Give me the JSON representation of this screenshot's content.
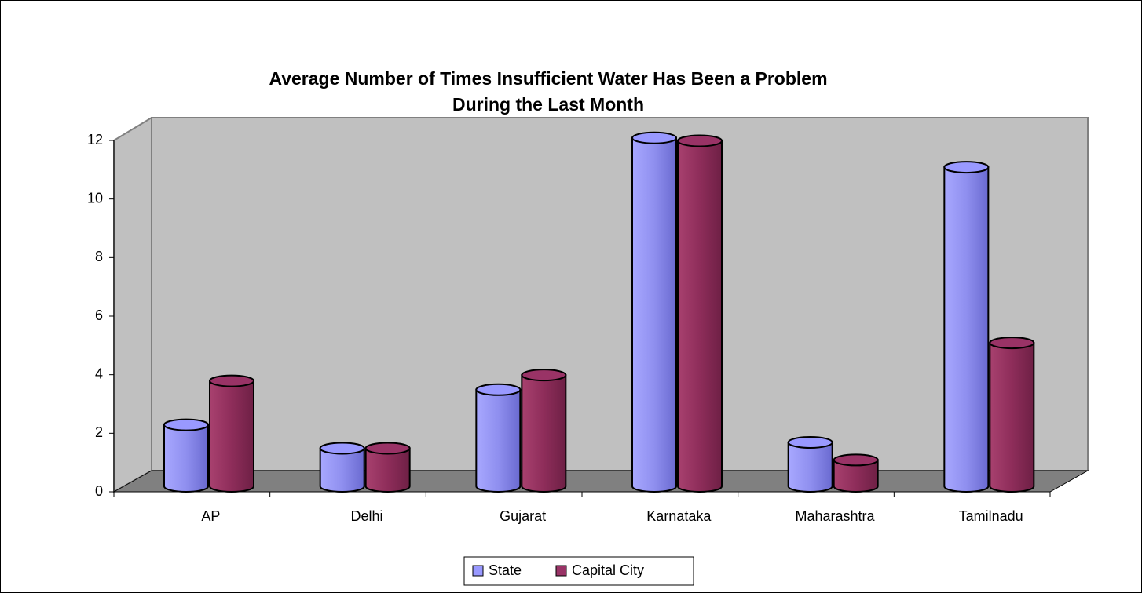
{
  "chart_data": {
    "type": "bar3d",
    "title": [
      "Average Number of Times Insufficient Water Has Been a Problem",
      "During the Last Month"
    ],
    "categories": [
      "AP",
      "Delhi",
      "Gujarat",
      "Karnataka",
      "Maharashtra",
      "Tamilnadu"
    ],
    "series": [
      {
        "name": "State",
        "color": "#9999ff",
        "values": [
          2.1,
          1.3,
          3.3,
          11.9,
          1.5,
          10.9
        ]
      },
      {
        "name": "Capital City",
        "color": "#993366",
        "values": [
          3.6,
          1.3,
          3.8,
          11.8,
          0.9,
          4.9
        ]
      }
    ],
    "ylim": [
      0,
      12
    ],
    "yticks": [
      0,
      2,
      4,
      6,
      8,
      10,
      12
    ],
    "legend": "bottom"
  }
}
